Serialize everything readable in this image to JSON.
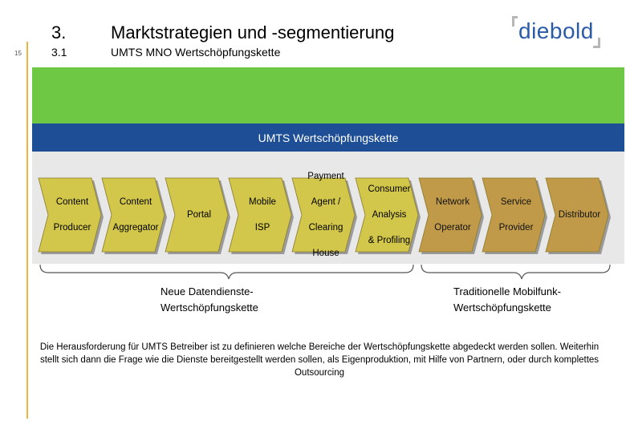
{
  "header": {
    "page_number": "15",
    "section_number": "3.",
    "section_title": "Marktstrategien und -segmentierung",
    "subsection_number": "3.1",
    "subsection_title": "UMTS MNO Wertschöpfungskette",
    "logo_text": "diebold"
  },
  "colors": {
    "accent_orange": "#f2b33d",
    "green_band": "#6ec844",
    "blue_bar": "#1e4f96",
    "chevron_olive": "#d2c74a",
    "chevron_tan": "#c09a48",
    "logo_blue": "#2a5ba8"
  },
  "value_chain": {
    "title": "UMTS Wertschöpfungskette",
    "steps": [
      {
        "label": "Content\nProducer",
        "group": "new"
      },
      {
        "label": "Content\nAggregator",
        "group": "new"
      },
      {
        "label": "Portal",
        "group": "new"
      },
      {
        "label": "Mobile\nISP",
        "group": "new"
      },
      {
        "label": "Payment\nAgent /\nClearing\nHouse",
        "group": "new"
      },
      {
        "label": "Consumer\nAnalysis\n& Profiling",
        "group": "new"
      },
      {
        "label": "Network\nOperator",
        "group": "traditional"
      },
      {
        "label": "Service\nProvider",
        "group": "traditional"
      },
      {
        "label": "Distributor",
        "group": "traditional"
      }
    ]
  },
  "groups": {
    "new_label": "Neue Datendienste-\nWertschöpfungskette",
    "traditional_label": "Traditionelle Mobilfunk-\nWertschöpfungskette"
  },
  "note": "Die Herausforderung für UMTS Betreiber ist zu definieren welche Bereiche der Wertschöpfungskette abgedeckt werden sollen. Weiterhin stellt sich dann die Frage wie die Dienste bereitgestellt werden sollen, als Eigenproduktion, mit Hilfe von Partnern, oder durch komplettes Outsourcing"
}
